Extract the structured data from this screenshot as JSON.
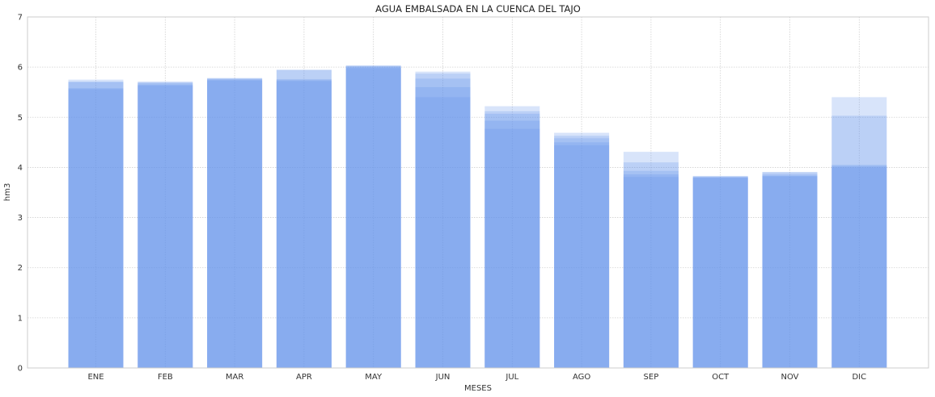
{
  "chart_data": {
    "type": "bar",
    "title": "AGUA EMBALSADA EN LA CUENCA DEL TAJO",
    "xlabel": "MESES",
    "ylabel": "hm3",
    "ylim": [
      0,
      7
    ],
    "yticks": [
      "0",
      "1",
      "2",
      "3",
      "4",
      "5",
      "6",
      "7"
    ],
    "grid": true,
    "bar_color": "#6495ed",
    "bar_opacity": 0.25,
    "categories": [
      "ENE",
      "FEB",
      "MAR",
      "APR",
      "MAY",
      "JUN",
      "JUL",
      "AGO",
      "SEP",
      "OCT",
      "NOV",
      "DIC"
    ],
    "series": [
      {
        "values": [
          5.56,
          5.63,
          5.73,
          5.72,
          5.98,
          5.4,
          4.77,
          4.44,
          3.81,
          3.79,
          3.82,
          4.0
        ]
      },
      {
        "values": [
          5.58,
          5.65,
          5.75,
          5.74,
          6.0,
          5.6,
          4.93,
          4.5,
          3.86,
          3.8,
          3.83,
          4.03
        ]
      },
      {
        "values": [
          5.7,
          5.68,
          5.76,
          5.76,
          6.02,
          5.77,
          5.07,
          4.58,
          3.93,
          3.81,
          3.86,
          4.05
        ]
      },
      {
        "values": [
          5.71,
          5.7,
          5.78,
          5.94,
          6.03,
          5.87,
          5.12,
          4.63,
          4.1,
          3.82,
          3.9,
          5.03
        ]
      },
      {
        "values": [
          5.75,
          5.71,
          5.78,
          5.95,
          6.03,
          5.91,
          5.22,
          4.69,
          4.31,
          3.83,
          3.91,
          5.4
        ]
      }
    ]
  }
}
